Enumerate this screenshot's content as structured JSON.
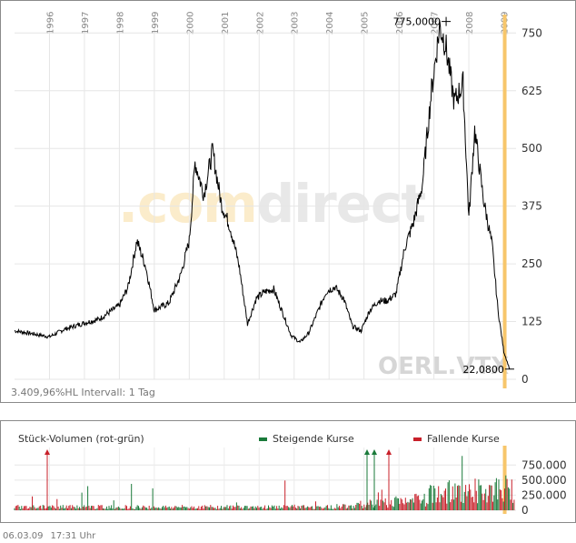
{
  "chart_data": [
    {
      "type": "line",
      "title": "",
      "ticker": "OERL.VTX",
      "series": [
        {
          "x": [
            "1995-01",
            "1995-06",
            "1996-01",
            "1996-06",
            "1997-01",
            "1997-06",
            "1998-01",
            "1998-04",
            "1998-07",
            "1998-10",
            "1999-01",
            "1999-06",
            "1999-10",
            "2000-01",
            "2000-03",
            "2000-06",
            "2000-09",
            "2000-12",
            "2001-03",
            "2001-06",
            "2001-09",
            "2001-12",
            "2002-03",
            "2002-06",
            "2002-09",
            "2002-12",
            "2003-03",
            "2003-06",
            "2003-09",
            "2003-12",
            "2004-03",
            "2004-06",
            "2004-09",
            "2004-12",
            "2005-03",
            "2005-06",
            "2005-09",
            "2005-12",
            "2006-03",
            "2006-06",
            "2006-09",
            "2006-12",
            "2007-03",
            "2007-05",
            "2007-08",
            "2007-11",
            "2008-01",
            "2008-03",
            "2008-06",
            "2008-09",
            "2008-11",
            "2009-01",
            "2009-03"
          ],
          "values": [
            105,
            100,
            92,
            108,
            122,
            130,
            160,
            200,
            300,
            245,
            150,
            165,
            225,
            300,
            470,
            400,
            495,
            380,
            330,
            250,
            120,
            175,
            190,
            195,
            145,
            95,
            80,
            100,
            145,
            190,
            200,
            175,
            115,
            105,
            150,
            170,
            170,
            185,
            285,
            340,
            420,
            615,
            765,
            725,
            600,
            640,
            350,
            540,
            390,
            290,
            150,
            60,
            22.08
          ]
        }
      ],
      "ylim": [
        0,
        790
      ],
      "yticks": [
        0,
        125,
        250,
        375,
        500,
        625,
        750
      ],
      "x_tick_labels": [
        "1996",
        "1997",
        "1998",
        "1999",
        "2000",
        "2001",
        "2002",
        "2003",
        "2004",
        "2005",
        "2006",
        "2007",
        "2008",
        "2009"
      ],
      "annotations": {
        "max_label": "775,0000",
        "min_label": "22,0800"
      },
      "grid": true,
      "info_text": "3.409,96%HL  Intervall: 1 Tag"
    },
    {
      "type": "bar",
      "title": "Stück-Volumen (rot-grün)",
      "legend": [
        {
          "name": "Steigende Kurse",
          "color": "#1a7a3a"
        },
        {
          "name": "Fallende Kurse",
          "color": "#c8202a"
        }
      ],
      "yticks_labels": [
        "750.000",
        "500.000",
        "250.000",
        "0"
      ],
      "ylim": [
        0,
        950000
      ],
      "colors": {
        "up": "#1a7a3a",
        "down": "#c8202a"
      }
    }
  ],
  "watermark": {
    "part1": ".com",
    "part2": "direct"
  },
  "footer": {
    "date": "06.03.09",
    "time": "17:31 Uhr"
  },
  "colors": {
    "price_line": "#000000",
    "highlight_band": "#f7c66b",
    "grid": "#e6e6e6"
  }
}
